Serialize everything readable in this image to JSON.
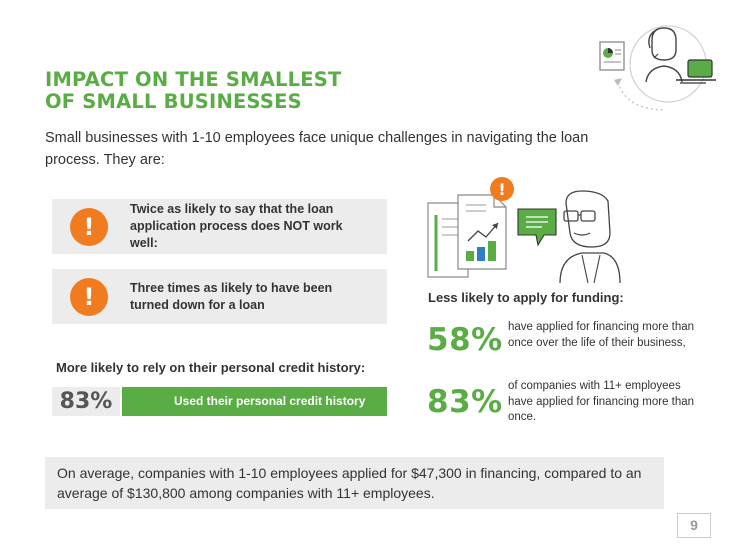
{
  "title": {
    "line1": "IMPACT ON THE SMALLEST",
    "line2": "OF SMALL BUSINESSES"
  },
  "intro": "Small businesses with 1-10 employees face unique challenges in navigating the loan process. They are:",
  "callouts": [
    {
      "badge": "!",
      "text": "Twice as likely to say that the loan application process does NOT work well:"
    },
    {
      "badge": "!",
      "text": "Three times as likely to have been turned down for a loan"
    }
  ],
  "credit": {
    "heading": "More likely to rely on their personal credit history:",
    "value": "83%",
    "label": "Used their personal credit history",
    "percent": 83
  },
  "funding": {
    "heading": "Less likely to apply for funding:",
    "stats": [
      {
        "value": "58%",
        "text": "have applied for financing more than once over the life of their business,"
      },
      {
        "value": "83%",
        "text": "of companies with 11+ employees have applied for financing more than once."
      }
    ],
    "alert_badge": "!"
  },
  "footer": "On average, companies with 1-10 employees applied for $47,300 in financing, compared to an average of $130,800 among companies with 11+ employees.",
  "page_number": "9",
  "colors": {
    "green": "#5aad45",
    "orange": "#f07c1f",
    "panel_gray": "#ececec",
    "text": "#333333"
  },
  "icons": [
    "alert-icon",
    "document-chart-icon",
    "chat-bubble-icon",
    "person-with-glasses-icon",
    "person-at-laptop-icon"
  ]
}
